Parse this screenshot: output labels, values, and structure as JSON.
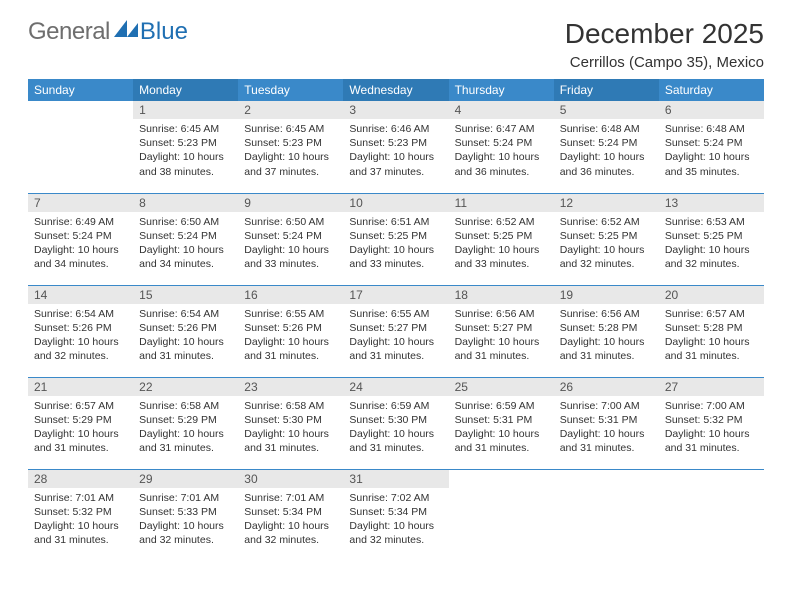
{
  "logo": {
    "text1": "General",
    "text2": "Blue"
  },
  "title": "December 2025",
  "location": "Cerrillos (Campo 35), Mexico",
  "colors": {
    "header_blue": "#3a89c9",
    "header_blue_dark": "#2f7ab5",
    "divider_blue": "#3a89c9",
    "daynum_bg": "#e8e8e8",
    "logo_gray": "#6e6e6e",
    "logo_blue": "#1f6fb2"
  },
  "weekdays": [
    "Sunday",
    "Monday",
    "Tuesday",
    "Wednesday",
    "Thursday",
    "Friday",
    "Saturday"
  ],
  "weeks": [
    [
      null,
      {
        "n": "1",
        "sr": "6:45 AM",
        "ss": "5:23 PM",
        "dl": "10 hours and 38 minutes."
      },
      {
        "n": "2",
        "sr": "6:45 AM",
        "ss": "5:23 PM",
        "dl": "10 hours and 37 minutes."
      },
      {
        "n": "3",
        "sr": "6:46 AM",
        "ss": "5:23 PM",
        "dl": "10 hours and 37 minutes."
      },
      {
        "n": "4",
        "sr": "6:47 AM",
        "ss": "5:24 PM",
        "dl": "10 hours and 36 minutes."
      },
      {
        "n": "5",
        "sr": "6:48 AM",
        "ss": "5:24 PM",
        "dl": "10 hours and 36 minutes."
      },
      {
        "n": "6",
        "sr": "6:48 AM",
        "ss": "5:24 PM",
        "dl": "10 hours and 35 minutes."
      }
    ],
    [
      {
        "n": "7",
        "sr": "6:49 AM",
        "ss": "5:24 PM",
        "dl": "10 hours and 34 minutes."
      },
      {
        "n": "8",
        "sr": "6:50 AM",
        "ss": "5:24 PM",
        "dl": "10 hours and 34 minutes."
      },
      {
        "n": "9",
        "sr": "6:50 AM",
        "ss": "5:24 PM",
        "dl": "10 hours and 33 minutes."
      },
      {
        "n": "10",
        "sr": "6:51 AM",
        "ss": "5:25 PM",
        "dl": "10 hours and 33 minutes."
      },
      {
        "n": "11",
        "sr": "6:52 AM",
        "ss": "5:25 PM",
        "dl": "10 hours and 33 minutes."
      },
      {
        "n": "12",
        "sr": "6:52 AM",
        "ss": "5:25 PM",
        "dl": "10 hours and 32 minutes."
      },
      {
        "n": "13",
        "sr": "6:53 AM",
        "ss": "5:25 PM",
        "dl": "10 hours and 32 minutes."
      }
    ],
    [
      {
        "n": "14",
        "sr": "6:54 AM",
        "ss": "5:26 PM",
        "dl": "10 hours and 32 minutes."
      },
      {
        "n": "15",
        "sr": "6:54 AM",
        "ss": "5:26 PM",
        "dl": "10 hours and 31 minutes."
      },
      {
        "n": "16",
        "sr": "6:55 AM",
        "ss": "5:26 PM",
        "dl": "10 hours and 31 minutes."
      },
      {
        "n": "17",
        "sr": "6:55 AM",
        "ss": "5:27 PM",
        "dl": "10 hours and 31 minutes."
      },
      {
        "n": "18",
        "sr": "6:56 AM",
        "ss": "5:27 PM",
        "dl": "10 hours and 31 minutes."
      },
      {
        "n": "19",
        "sr": "6:56 AM",
        "ss": "5:28 PM",
        "dl": "10 hours and 31 minutes."
      },
      {
        "n": "20",
        "sr": "6:57 AM",
        "ss": "5:28 PM",
        "dl": "10 hours and 31 minutes."
      }
    ],
    [
      {
        "n": "21",
        "sr": "6:57 AM",
        "ss": "5:29 PM",
        "dl": "10 hours and 31 minutes."
      },
      {
        "n": "22",
        "sr": "6:58 AM",
        "ss": "5:29 PM",
        "dl": "10 hours and 31 minutes."
      },
      {
        "n": "23",
        "sr": "6:58 AM",
        "ss": "5:30 PM",
        "dl": "10 hours and 31 minutes."
      },
      {
        "n": "24",
        "sr": "6:59 AM",
        "ss": "5:30 PM",
        "dl": "10 hours and 31 minutes."
      },
      {
        "n": "25",
        "sr": "6:59 AM",
        "ss": "5:31 PM",
        "dl": "10 hours and 31 minutes."
      },
      {
        "n": "26",
        "sr": "7:00 AM",
        "ss": "5:31 PM",
        "dl": "10 hours and 31 minutes."
      },
      {
        "n": "27",
        "sr": "7:00 AM",
        "ss": "5:32 PM",
        "dl": "10 hours and 31 minutes."
      }
    ],
    [
      {
        "n": "28",
        "sr": "7:01 AM",
        "ss": "5:32 PM",
        "dl": "10 hours and 31 minutes."
      },
      {
        "n": "29",
        "sr": "7:01 AM",
        "ss": "5:33 PM",
        "dl": "10 hours and 32 minutes."
      },
      {
        "n": "30",
        "sr": "7:01 AM",
        "ss": "5:34 PM",
        "dl": "10 hours and 32 minutes."
      },
      {
        "n": "31",
        "sr": "7:02 AM",
        "ss": "5:34 PM",
        "dl": "10 hours and 32 minutes."
      },
      null,
      null,
      null
    ]
  ],
  "labels": {
    "sunrise": "Sunrise:",
    "sunset": "Sunset:",
    "daylight": "Daylight:"
  }
}
